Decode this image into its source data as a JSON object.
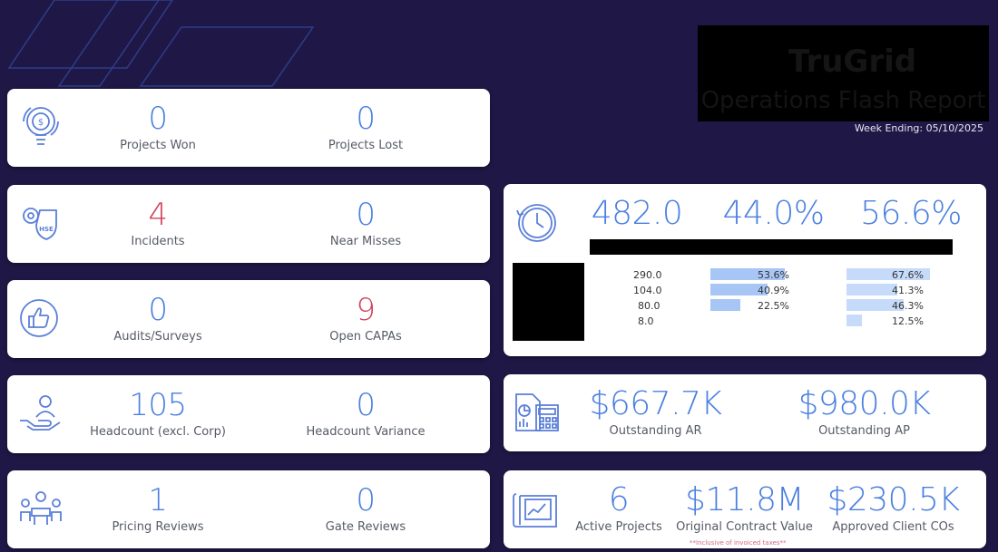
{
  "header": {
    "logo_text": "TruGrid",
    "report_title": "Operations Flash Report",
    "week_ending": "Week Ending: 05/10/2025"
  },
  "cards": {
    "projects": {
      "icon": "lightbulb-dollar-icon",
      "won_value": "0",
      "won_label": "Projects Won",
      "lost_value": "0",
      "lost_label": "Projects Lost"
    },
    "safety": {
      "icon": "hse-shield-icon",
      "incidents_value": "4",
      "incidents_label": "Incidents",
      "near_value": "0",
      "near_label": "Near Misses"
    },
    "audits": {
      "icon": "thumbs-up-icon",
      "audits_value": "0",
      "audits_label": "Audits/Surveys",
      "capas_value": "9",
      "capas_label": "Open CAPAs"
    },
    "headcount": {
      "icon": "hand-person-icon",
      "headcount_value": "105",
      "headcount_label": "Headcount (excl. Corp)",
      "variance_value": "0",
      "variance_label": "Headcount Variance"
    },
    "reviews": {
      "icon": "meeting-icon",
      "pricing_value": "1",
      "pricing_label": "Pricing Reviews",
      "gate_value": "0",
      "gate_label": "Gate Reviews"
    },
    "hours": {
      "icon": "clock-icon",
      "metric1": "482.0",
      "metric2": "44.0%",
      "metric3": "56.6%",
      "rows": [
        {
          "value": "290.0",
          "pct1": "53.6%",
          "pct1_num": 53.6,
          "pct2": "67.6%",
          "pct2_num": 67.6
        },
        {
          "value": "104.0",
          "pct1": "40.9%",
          "pct1_num": 40.9,
          "pct2": "41.3%",
          "pct2_num": 41.3
        },
        {
          "value": "80.0",
          "pct1": "22.5%",
          "pct1_num": 22.5,
          "pct2": "46.3%",
          "pct2_num": 46.3
        },
        {
          "value": "8.0",
          "pct1": "",
          "pct1_num": 0,
          "pct2": "12.5%",
          "pct2_num": 12.5
        }
      ]
    },
    "finance": {
      "icon": "financial-report-icon",
      "ar_value": "$667.7K",
      "ar_label": "Outstanding AR",
      "ap_value": "$980.0K",
      "ap_label": "Outstanding AP"
    },
    "contracts": {
      "icon": "blueprint-chart-icon",
      "active_value": "6",
      "active_label": "Active Projects",
      "ocv_value": "$11.8M",
      "ocv_label": "Original Contract Value",
      "cos_value": "$230.5K",
      "cos_label": "Approved Client COs",
      "note": "**Inclusive of invoiced taxes**"
    }
  },
  "colors": {
    "background": "#1f1846",
    "value_blue": "#4a7fe0",
    "value_red": "#d3415d",
    "icon_blue": "#5b7fd9"
  }
}
